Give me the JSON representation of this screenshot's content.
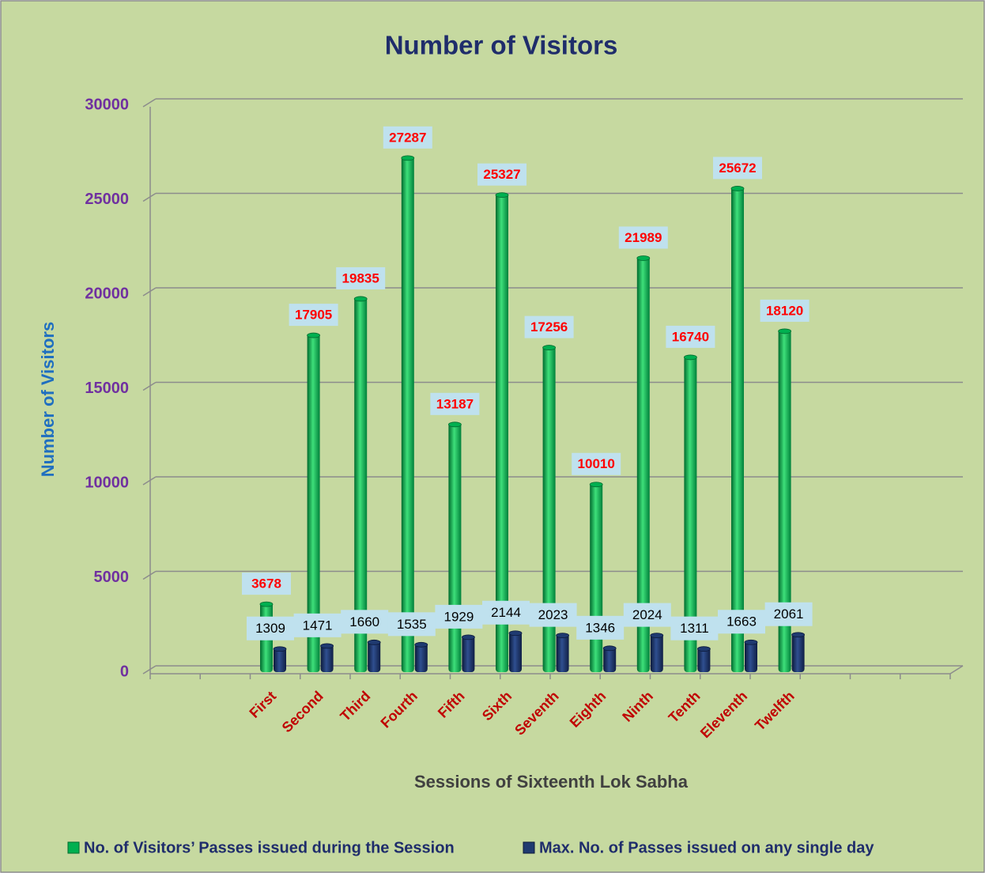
{
  "chart_data": {
    "type": "bar",
    "title": "Number of Visitors",
    "y_label": "Number of Visitors",
    "x_label": "Sessions of Sixteenth Lok Sabha",
    "categories": [
      "First",
      "Second",
      "Third",
      "Fourth",
      "Fifth",
      "Sixth",
      "Seventh",
      "Eighth",
      "Ninth",
      "Tenth",
      "Eleventh",
      "Twelfth"
    ],
    "series": [
      {
        "name": "No. of Visitors’ Passes issued during the Session",
        "color": "#00b050",
        "values": [
          3678,
          17905,
          19835,
          27287,
          13187,
          25327,
          17256,
          10010,
          21989,
          16740,
          25672,
          18120
        ]
      },
      {
        "name": "Max. No. of Passes issued on any single day",
        "color": "#1f3a70",
        "values": [
          1309,
          1471,
          1660,
          1535,
          1929,
          2144,
          2023,
          1346,
          2024,
          1311,
          1663,
          2061
        ]
      }
    ],
    "ylim": [
      0,
      30000
    ],
    "yticks": [
      0,
      5000,
      10000,
      15000,
      20000,
      25000,
      30000
    ],
    "grid": true
  }
}
